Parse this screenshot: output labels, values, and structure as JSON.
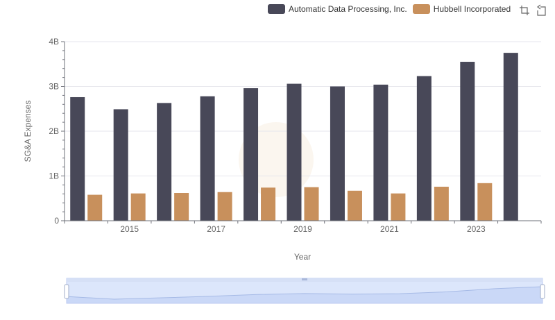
{
  "chart_data": {
    "type": "bar",
    "x": [
      2014,
      2015,
      2016,
      2017,
      2018,
      2019,
      2020,
      2021,
      2022,
      2023,
      2024
    ],
    "x_tick_labels": [
      "2015",
      "2017",
      "2019",
      "2021",
      "2023"
    ],
    "xlabel": "Year",
    "ylabel": "SG&A Expenses",
    "y_tick_labels": [
      "0",
      "1B",
      "2B",
      "3B",
      "4B"
    ],
    "ylim": [
      0,
      4000000000
    ],
    "series": [
      {
        "name": "Automatic Data Processing, Inc.",
        "color": "#484858",
        "values": [
          2760000000,
          2490000000,
          2630000000,
          2780000000,
          2960000000,
          3060000000,
          3000000000,
          3040000000,
          3230000000,
          3550000000,
          3750000000
        ]
      },
      {
        "name": "Hubbell Incorporated",
        "color": "#c8905c",
        "values": [
          580000000,
          610000000,
          620000000,
          640000000,
          740000000,
          750000000,
          670000000,
          610000000,
          760000000,
          840000000,
          null
        ]
      }
    ],
    "legend_position": "top-right",
    "grid": true
  },
  "toolbox": {
    "zoom_icon": "zoom-icon",
    "restore_icon": "restore-icon"
  },
  "data_zoom": {
    "range_percent": [
      0,
      100
    ]
  }
}
